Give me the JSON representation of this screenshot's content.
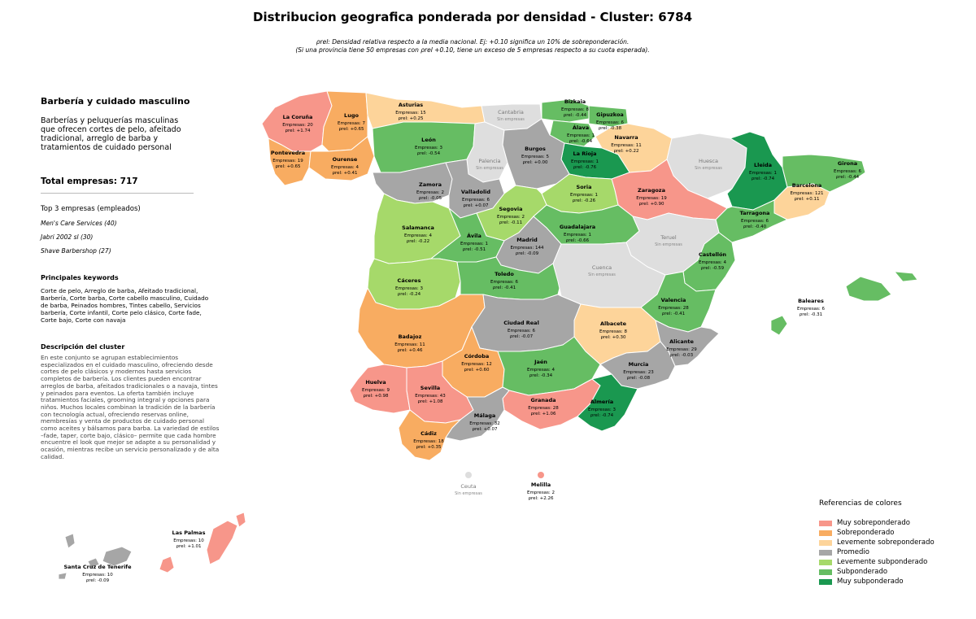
{
  "title": "Distribucion geografica ponderada por densidad - Cluster: 6784",
  "subtitle": {
    "line1": "ρrel: Densidad relativa respecto a la media nacional. Ej: +0.10 significa un 10% de sobreponderación.",
    "line2": "(Si una provincia tiene 50 empresas con ρrel +0.10, tiene un exceso de 5 empresas respecto a su cuota esperada)."
  },
  "panel": {
    "cluster_name": "Barbería y cuidado masculino",
    "cluster_desc": "Barberías y peluquerías masculinas que ofrecen cortes de pelo, afeitado tradicional, arreglo de barba y tratamientos de cuidado personal",
    "total": "Total empresas: 717",
    "top_title": "Top 3 empresas (empleados)",
    "top": [
      "Men's Care Services (40)",
      "Jabri 2002 sl (30)",
      "Shave Barbershop (27)"
    ],
    "keywords_title": "Principales keywords",
    "keywords": "Corte de pelo, Arreglo de barba, Afeitado tradicional, Barbería, Corte barba, Corte cabello masculino, Cuidado de barba, Peinados hombres, Tintes cabello, Servicios barbería, Corte infantil, Corte pelo clásico, Corte fade, Corte bajo, Corte con navaja",
    "description_title": "Descripción del cluster",
    "description": "En este conjunto se agrupan establecimientos especializados en el cuidado masculino, ofreciendo desde cortes de pelo clásicos y modernos hasta servicios completos de barbería. Los clientes pueden encontrar arreglos de barba, afeitados tradicionales o a navaja, tintes y peinados para eventos. La oferta también incluye tratamientos faciales, grooming integral y opciones para niños. Muchos locales combinan la tradición de la barbería con tecnología actual, ofreciendo reservas online, membresías y venta de productos de cuidado personal como aceites y bálsamos para barba. La variedad de estilos –fade, taper, corte bajo, clásico– permite que cada hombre encuentre el look que mejor se adapte a su personalidad y ocasión, mientras recibe un servicio personalizado y de alta calidad."
  },
  "colors": {
    "muy_sobre": "#f7968a",
    "sobre": "#f8ac61",
    "lev_sobre": "#fdd49a",
    "promedio": "#a6a6a6",
    "lev_sub": "#a6d96a",
    "sub": "#66bd63",
    "muy_sub": "#1a9850",
    "sin": "#dedede"
  },
  "legend": {
    "title": "Referencias de colores",
    "items": [
      {
        "label": "Muy sobreponderado",
        "color": "#f7968a"
      },
      {
        "label": "Sobreponderado",
        "color": "#f8ac61"
      },
      {
        "label": "Levemente sobreponderado",
        "color": "#fdd49a"
      },
      {
        "label": "Promedio",
        "color": "#a6a6a6"
      },
      {
        "label": "Levemente subponderado",
        "color": "#a6d96a"
      },
      {
        "label": "Subponderado",
        "color": "#66bd63"
      },
      {
        "label": "Muy subponderado",
        "color": "#1a9850"
      }
    ]
  },
  "provinces": [
    {
      "name": "La Coruña",
      "cat": "muy_sobre",
      "empresas": 20,
      "rho": "+1.74"
    },
    {
      "name": "Lugo",
      "cat": "sobre",
      "empresas": 7,
      "rho": "+0.65"
    },
    {
      "name": "Asturias",
      "cat": "lev_sobre",
      "empresas": 15,
      "rho": "+0.25"
    },
    {
      "name": "Cantabria",
      "cat": "sin"
    },
    {
      "name": "Bizkaia",
      "cat": "sub",
      "empresas": 8,
      "rho": "-0.44"
    },
    {
      "name": "Gipuzkoa",
      "cat": "sub",
      "empresas": 6,
      "rho": "-0.38"
    },
    {
      "name": "Álava",
      "cat": "sub",
      "empresas": 1,
      "rho": "-0.64"
    },
    {
      "name": "Navarra",
      "cat": "lev_sobre",
      "empresas": 11,
      "rho": "+0.22"
    },
    {
      "name": "La Rioja",
      "cat": "muy_sub",
      "empresas": 1,
      "rho": "-0.76"
    },
    {
      "name": "Pontevedra",
      "cat": "sobre",
      "empresas": 19,
      "rho": "+0.65"
    },
    {
      "name": "Ourense",
      "cat": "sobre",
      "empresas": 4,
      "rho": "+0.41"
    },
    {
      "name": "León",
      "cat": "sub",
      "empresas": 3,
      "rho": "-0.54"
    },
    {
      "name": "Palencia",
      "cat": "sin"
    },
    {
      "name": "Burgos",
      "cat": "promedio",
      "empresas": 5,
      "rho": "+0.00"
    },
    {
      "name": "Huesca",
      "cat": "sin"
    },
    {
      "name": "Lleida",
      "cat": "muy_sub",
      "empresas": 1,
      "rho": "-0.74"
    },
    {
      "name": "Girona",
      "cat": "sub",
      "empresas": 6,
      "rho": "-0.44"
    },
    {
      "name": "Barcelona",
      "cat": "lev_sobre",
      "empresas": 121,
      "rho": "+0.11"
    },
    {
      "name": "Zaragoza",
      "cat": "muy_sobre",
      "empresas": 19,
      "rho": "+0.90"
    },
    {
      "name": "Zamora",
      "cat": "promedio",
      "empresas": 2,
      "rho": "-0.05"
    },
    {
      "name": "Valladolid",
      "cat": "promedio",
      "empresas": 6,
      "rho": "+0.07"
    },
    {
      "name": "Soria",
      "cat": "lev_sub",
      "empresas": 1,
      "rho": "-0.26"
    },
    {
      "name": "Tarragona",
      "cat": "sub",
      "empresas": 6,
      "rho": "-0.40"
    },
    {
      "name": "Salamanca",
      "cat": "lev_sub",
      "empresas": 4,
      "rho": "-0.22"
    },
    {
      "name": "Segovia",
      "cat": "lev_sub",
      "empresas": 2,
      "rho": "-0.11"
    },
    {
      "name": "Ávila",
      "cat": "sub",
      "empresas": 1,
      "rho": "-0.51"
    },
    {
      "name": "Madrid",
      "cat": "promedio",
      "empresas": 144,
      "rho": "-0.09"
    },
    {
      "name": "Guadalajara",
      "cat": "sub",
      "empresas": 1,
      "rho": "-0.66"
    },
    {
      "name": "Teruel",
      "cat": "sin"
    },
    {
      "name": "Castellón",
      "cat": "sub",
      "empresas": 4,
      "rho": "-0.59"
    },
    {
      "name": "Cáceres",
      "cat": "lev_sub",
      "empresas": 3,
      "rho": "-0.24"
    },
    {
      "name": "Toledo",
      "cat": "sub",
      "empresas": 6,
      "rho": "-0.41"
    },
    {
      "name": "Cuenca",
      "cat": "sin"
    },
    {
      "name": "Valencia",
      "cat": "sub",
      "empresas": 28,
      "rho": "-0.41"
    },
    {
      "name": "Baleares",
      "cat": "sub",
      "empresas": 6,
      "rho": "-0.31"
    },
    {
      "name": "Badajoz",
      "cat": "sobre",
      "empresas": 11,
      "rho": "+0.46"
    },
    {
      "name": "Ciudad Real",
      "cat": "promedio",
      "empresas": 6,
      "rho": "-0.07"
    },
    {
      "name": "Albacete",
      "cat": "lev_sobre",
      "empresas": 8,
      "rho": "+0.30"
    },
    {
      "name": "Alicante",
      "cat": "promedio",
      "empresas": 29,
      "rho": "-0.03"
    },
    {
      "name": "Córdoba",
      "cat": "sobre",
      "empresas": 12,
      "rho": "+0.60"
    },
    {
      "name": "Jaén",
      "cat": "sub",
      "empresas": 4,
      "rho": "-0.34"
    },
    {
      "name": "Murcia",
      "cat": "promedio",
      "empresas": 23,
      "rho": "-0.08"
    },
    {
      "name": "Huelva",
      "cat": "muy_sobre",
      "empresas": 9,
      "rho": "+0.98"
    },
    {
      "name": "Sevilla",
      "cat": "muy_sobre",
      "empresas": 43,
      "rho": "+1.08"
    },
    {
      "name": "Granada",
      "cat": "muy_sobre",
      "empresas": 28,
      "rho": "+1.06"
    },
    {
      "name": "Almería",
      "cat": "muy_sub",
      "empresas": 3,
      "rho": "-0.74"
    },
    {
      "name": "Málaga",
      "cat": "promedio",
      "empresas": 32,
      "rho": "+0.07"
    },
    {
      "name": "Cádiz",
      "cat": "sobre",
      "empresas": 18,
      "rho": "+0.35"
    },
    {
      "name": "Ceuta",
      "cat": "sin"
    },
    {
      "name": "Melilla",
      "cat": "muy_sobre",
      "empresas": 2,
      "rho": "+2.26"
    },
    {
      "name": "Las Palmas",
      "cat": "muy_sobre",
      "empresas": 10,
      "rho": "+1.01"
    },
    {
      "name": "Santa Cruz de Tenerife",
      "cat": "promedio",
      "empresas": 10,
      "rho": "-0.09"
    }
  ],
  "labels": {
    "empresas": "Empresas:",
    "rho": "ρrel:",
    "sin_empresas": "Sin empresas"
  }
}
